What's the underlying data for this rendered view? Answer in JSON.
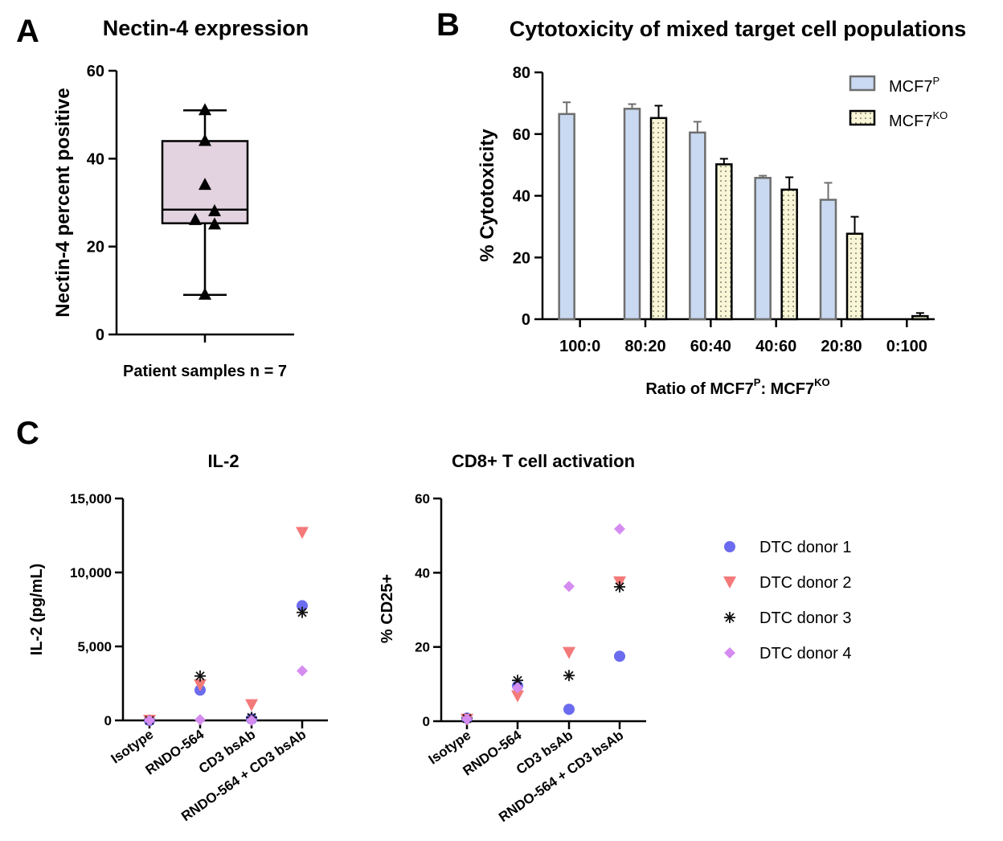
{
  "panels": {
    "A": {
      "letter": "A"
    },
    "B": {
      "letter": "B"
    },
    "C": {
      "letter": "C"
    }
  },
  "colors": {
    "box_fill": "#e3d2e0",
    "bar_parental": "#c9d9f1",
    "bar_parental_edge": "#6e6e6e",
    "bar_ko": "#f8f6d6",
    "donor1": "#6b6bf0",
    "donor2": "#f47a7a",
    "donor3": "#111111",
    "donor4": "#d58cf0"
  },
  "chart_data": [
    {
      "id": "A",
      "type": "box",
      "title": "Nectin-4 expression",
      "xlabel": "Patient samples n = 7",
      "ylabel": "Nectin-4 percent positive",
      "ylim": [
        0,
        60
      ],
      "yticks": [
        0,
        20,
        40,
        60
      ],
      "box": {
        "min": 9,
        "q1": 25.3,
        "median": 28.4,
        "q3": 44,
        "max": 51
      },
      "points": [
        51,
        44,
        34,
        28,
        26,
        25,
        9
      ]
    },
    {
      "id": "B",
      "type": "bar",
      "title": "Cytotoxicity of mixed target cell populations",
      "xlabel": "Ratio of MCF7",
      "xlabel_sup1": "P",
      "xlabel_mid": ": MCF7",
      "xlabel_sup2": "KO",
      "ylabel": "% Cytotoxicity",
      "ylim": [
        0,
        80
      ],
      "yticks": [
        0,
        20,
        40,
        60,
        80
      ],
      "categories": [
        "100:0",
        "80:20",
        "60:40",
        "40:60",
        "20:80",
        "0:100"
      ],
      "legend_base": "MCF7",
      "series": [
        {
          "name": "MCF7P",
          "sup": "P",
          "values": [
            66.5,
            68.2,
            60.5,
            45.8,
            38.7,
            null
          ],
          "errors": [
            3.8,
            1.5,
            3.5,
            0.7,
            5.5,
            null
          ]
        },
        {
          "name": "MCF7KO",
          "sup": "KO",
          "values": [
            null,
            65.2,
            50.2,
            42,
            27.7,
            1
          ],
          "errors": [
            null,
            4,
            1.8,
            4,
            5.5,
            1
          ]
        }
      ]
    },
    {
      "id": "C1",
      "type": "scatter",
      "title": "IL-2",
      "ylabel": "IL-2 (pg/mL)",
      "ylim": [
        0,
        15000
      ],
      "yticks": [
        0,
        5000,
        10000,
        15000
      ],
      "ytick_labels": [
        "0",
        "5,000",
        "10,000",
        "15,000"
      ],
      "categories": [
        "Isotype",
        "RNDO-564",
        "CD3 bsAb",
        "RNDO-564 + CD3 bsAb"
      ],
      "series": [
        {
          "name": "DTC donor 1",
          "marker": "circle",
          "values": [
            0,
            2050,
            100,
            7750
          ]
        },
        {
          "name": "DTC donor 2",
          "marker": "triangle-down",
          "values": [
            0,
            2400,
            1050,
            12700
          ]
        },
        {
          "name": "DTC donor 3",
          "marker": "asterisk",
          "values": [
            0,
            3000,
            200,
            7300
          ]
        },
        {
          "name": "DTC donor 4",
          "marker": "diamond",
          "values": [
            0,
            50,
            0,
            3350
          ]
        }
      ]
    },
    {
      "id": "C2",
      "type": "scatter",
      "title": "CD8+ T cell activation",
      "ylabel": "% CD25+",
      "ylim": [
        0,
        60
      ],
      "yticks": [
        0,
        20,
        40,
        60
      ],
      "ytick_labels": [
        "0",
        "20",
        "40",
        "60"
      ],
      "categories": [
        "Isotype",
        "RNDO-564",
        "CD3 bsAb",
        "RNDO-564 + CD3 bsAb"
      ],
      "series": [
        {
          "name": "DTC donor 1",
          "marker": "circle",
          "values": [
            0.8,
            9.5,
            3.2,
            17.5
          ]
        },
        {
          "name": "DTC donor 2",
          "marker": "triangle-down",
          "values": [
            0.5,
            6.8,
            18.5,
            37.5
          ]
        },
        {
          "name": "DTC donor 3",
          "marker": "asterisk",
          "values": [
            0.7,
            11,
            12.3,
            36.2
          ]
        },
        {
          "name": "DTC donor 4",
          "marker": "diamond",
          "values": [
            0.6,
            9,
            36.3,
            51.8
          ]
        }
      ]
    }
  ],
  "legend_c": [
    "DTC donor 1",
    "DTC donor 2",
    "DTC donor 3",
    "DTC donor 4"
  ]
}
